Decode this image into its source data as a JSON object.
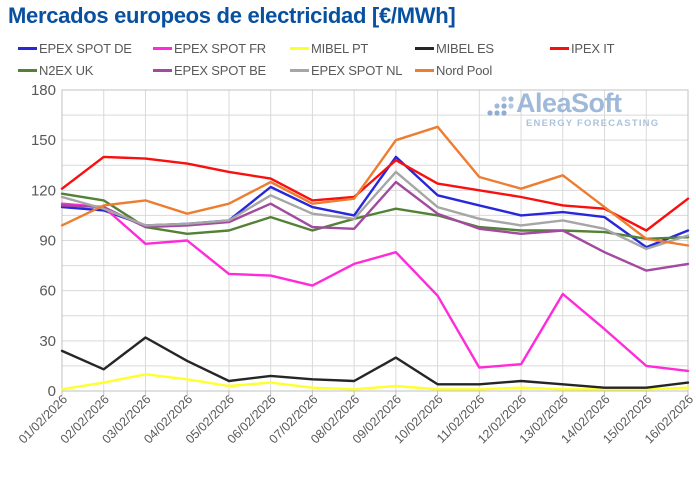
{
  "title": "Mercados europeos de electricidad [€/MWh]",
  "watermark": {
    "brand": "AleaSoft",
    "tagline": "ENERGY FORECASTING"
  },
  "chart_data": {
    "type": "line",
    "title": "Mercados europeos de electricidad [€/MWh]",
    "xlabel": "",
    "ylabel": "",
    "ylim": [
      0,
      180
    ],
    "yticks": [
      0,
      30,
      60,
      90,
      120,
      150,
      180
    ],
    "grid": "light gray; horizontal minor every 15, vertical line per date",
    "legend_position": "top",
    "x": [
      "01/02/2026",
      "02/02/2026",
      "03/02/2026",
      "04/02/2026",
      "05/02/2026",
      "06/02/2026",
      "07/02/2026",
      "08/02/2026",
      "09/02/2026",
      "10/02/2026",
      "11/02/2026",
      "12/02/2026",
      "13/02/2026",
      "14/02/2026",
      "15/02/2026",
      "16/02/2026"
    ],
    "series": [
      {
        "name": "EPEX SPOT DE",
        "color": "#2727DB",
        "values": [
          110,
          108,
          99,
          100,
          102,
          122,
          110,
          105,
          140,
          117,
          111,
          105,
          107,
          104,
          86,
          96
        ]
      },
      {
        "name": "EPEX SPOT FR",
        "color": "#FF2BD9",
        "values": [
          112,
          110,
          88,
          90,
          70,
          69,
          63,
          76,
          83,
          57,
          14,
          16,
          58,
          37,
          15,
          12
        ]
      },
      {
        "name": "MIBEL PT",
        "color": "#FFFF2E",
        "values": [
          1,
          5,
          10,
          7,
          3,
          5,
          2,
          1,
          3,
          1,
          1,
          2,
          1,
          1,
          1,
          2
        ]
      },
      {
        "name": "MIBEL ES",
        "color": "#262626",
        "values": [
          24,
          13,
          32,
          18,
          6,
          9,
          7,
          6,
          20,
          4,
          4,
          6,
          4,
          2,
          2,
          5
        ]
      },
      {
        "name": "IPEX IT",
        "color": "#FA0F0F",
        "values": [
          121,
          140,
          139,
          136,
          131,
          127,
          114,
          116,
          138,
          124,
          120,
          116,
          111,
          109,
          96,
          115
        ]
      },
      {
        "name": "N2EX UK",
        "color": "#538135",
        "values": [
          118,
          114,
          98,
          94,
          96,
          104,
          96,
          103,
          109,
          105,
          98,
          96,
          96,
          95,
          91,
          92
        ]
      },
      {
        "name": "EPEX SPOT BE",
        "color": "#A24AA0",
        "values": [
          111,
          110,
          98,
          99,
          101,
          112,
          98,
          97,
          125,
          106,
          97,
          94,
          96,
          83,
          72,
          76
        ]
      },
      {
        "name": "EPEX SPOT NL",
        "color": "#A6A6A6",
        "values": [
          116,
          109,
          99,
          100,
          102,
          117,
          106,
          103,
          131,
          110,
          103,
          99,
          102,
          97,
          85,
          93
        ]
      },
      {
        "name": "Nord Pool",
        "color": "#ED7D31",
        "values": [
          99,
          111,
          114,
          106,
          112,
          125,
          112,
          115,
          150,
          158,
          128,
          121,
          129,
          110,
          91,
          87
        ]
      }
    ]
  }
}
